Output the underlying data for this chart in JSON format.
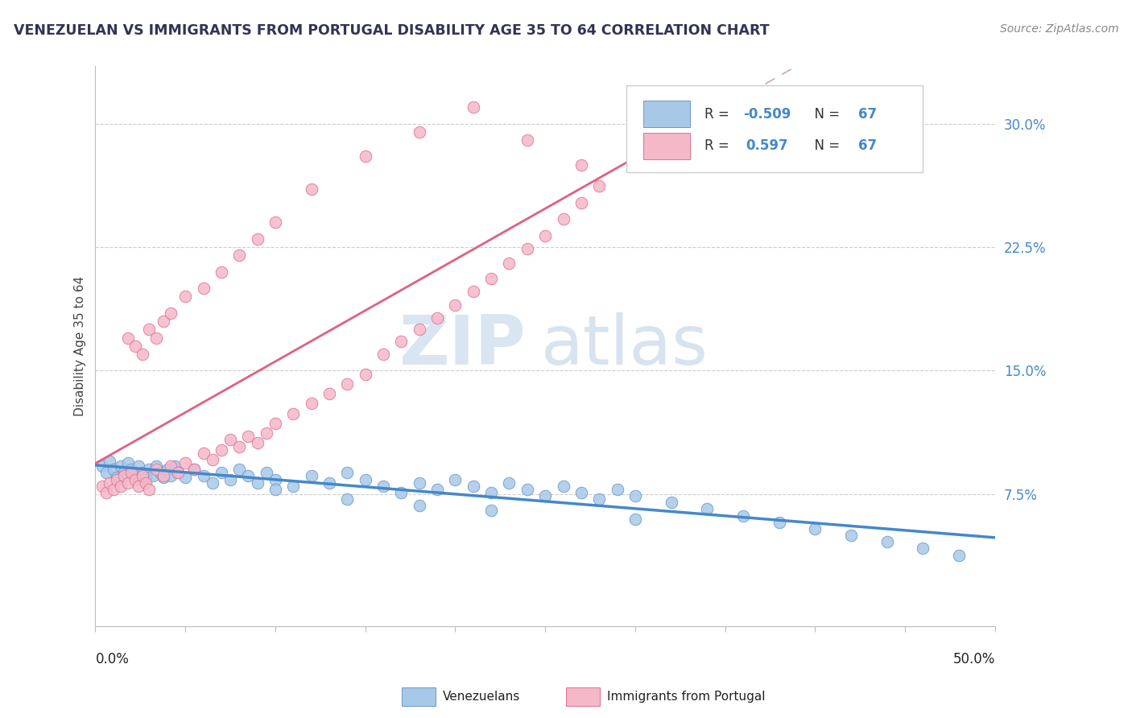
{
  "title": "VENEZUELAN VS IMMIGRANTS FROM PORTUGAL DISABILITY AGE 35 TO 64 CORRELATION CHART",
  "source_text": "Source: ZipAtlas.com",
  "R_blue": -0.509,
  "N_blue": 67,
  "R_pink": 0.597,
  "N_pink": 67,
  "blue_scatter_color": "#A8C8E8",
  "blue_edge_color": "#6899CC",
  "pink_scatter_color": "#F5B8C8",
  "pink_edge_color": "#E07090",
  "blue_line_color": "#4488CC",
  "pink_line_color": "#E06080",
  "legend_label_blue": "Venezuelans",
  "legend_label_pink": "Immigrants from Portugal",
  "xmin": 0.0,
  "xmax": 0.5,
  "ymin": -0.005,
  "ymax": 0.335,
  "y_ticks": [
    0.075,
    0.15,
    0.225,
    0.3
  ],
  "y_labels": [
    "7.5%",
    "15.0%",
    "22.5%",
    "30.0%"
  ],
  "grid_color": "#CCCCCC",
  "watermark_zip_color": "#C0D4E8",
  "watermark_atlas_color": "#B0C8E0",
  "legend_r_color": "#4488CC",
  "legend_n_color": "#4488CC",
  "title_color": "#333355",
  "source_color": "#888888",
  "ven_x": [
    0.004,
    0.006,
    0.008,
    0.01,
    0.012,
    0.014,
    0.016,
    0.018,
    0.02,
    0.022,
    0.024,
    0.026,
    0.028,
    0.03,
    0.032,
    0.034,
    0.036,
    0.038,
    0.04,
    0.042,
    0.044,
    0.046,
    0.05,
    0.055,
    0.06,
    0.065,
    0.07,
    0.075,
    0.08,
    0.085,
    0.09,
    0.095,
    0.1,
    0.11,
    0.12,
    0.13,
    0.14,
    0.15,
    0.16,
    0.17,
    0.18,
    0.19,
    0.2,
    0.21,
    0.22,
    0.23,
    0.24,
    0.25,
    0.26,
    0.27,
    0.28,
    0.29,
    0.3,
    0.32,
    0.34,
    0.36,
    0.38,
    0.4,
    0.42,
    0.44,
    0.46,
    0.48,
    0.3,
    0.22,
    0.18,
    0.14,
    0.1
  ],
  "ven_y": [
    0.092,
    0.088,
    0.095,
    0.09,
    0.085,
    0.092,
    0.088,
    0.094,
    0.09,
    0.086,
    0.092,
    0.088,
    0.085,
    0.09,
    0.086,
    0.092,
    0.088,
    0.085,
    0.09,
    0.086,
    0.092,
    0.088,
    0.085,
    0.09,
    0.086,
    0.082,
    0.088,
    0.084,
    0.09,
    0.086,
    0.082,
    0.088,
    0.084,
    0.08,
    0.086,
    0.082,
    0.088,
    0.084,
    0.08,
    0.076,
    0.082,
    0.078,
    0.084,
    0.08,
    0.076,
    0.082,
    0.078,
    0.074,
    0.08,
    0.076,
    0.072,
    0.078,
    0.074,
    0.07,
    0.066,
    0.062,
    0.058,
    0.054,
    0.05,
    0.046,
    0.042,
    0.038,
    0.06,
    0.065,
    0.068,
    0.072,
    0.078
  ],
  "por_x": [
    0.004,
    0.006,
    0.008,
    0.01,
    0.012,
    0.014,
    0.016,
    0.018,
    0.02,
    0.022,
    0.024,
    0.026,
    0.028,
    0.03,
    0.034,
    0.038,
    0.042,
    0.046,
    0.05,
    0.055,
    0.06,
    0.065,
    0.07,
    0.075,
    0.08,
    0.085,
    0.09,
    0.095,
    0.1,
    0.11,
    0.12,
    0.13,
    0.14,
    0.15,
    0.16,
    0.17,
    0.18,
    0.19,
    0.2,
    0.21,
    0.22,
    0.23,
    0.24,
    0.25,
    0.26,
    0.27,
    0.28,
    0.018,
    0.022,
    0.026,
    0.03,
    0.034,
    0.038,
    0.042,
    0.05,
    0.06,
    0.07,
    0.08,
    0.09,
    0.1,
    0.12,
    0.15,
    0.18,
    0.21,
    0.24,
    0.27,
    0.3
  ],
  "por_y": [
    0.08,
    0.076,
    0.082,
    0.078,
    0.084,
    0.08,
    0.086,
    0.082,
    0.088,
    0.084,
    0.08,
    0.086,
    0.082,
    0.078,
    0.09,
    0.086,
    0.092,
    0.088,
    0.094,
    0.09,
    0.1,
    0.096,
    0.102,
    0.108,
    0.104,
    0.11,
    0.106,
    0.112,
    0.118,
    0.124,
    0.13,
    0.136,
    0.142,
    0.148,
    0.16,
    0.168,
    0.175,
    0.182,
    0.19,
    0.198,
    0.206,
    0.215,
    0.224,
    0.232,
    0.242,
    0.252,
    0.262,
    0.17,
    0.165,
    0.16,
    0.175,
    0.17,
    0.18,
    0.185,
    0.195,
    0.2,
    0.21,
    0.22,
    0.23,
    0.24,
    0.26,
    0.28,
    0.295,
    0.31,
    0.29,
    0.275,
    0.285
  ]
}
